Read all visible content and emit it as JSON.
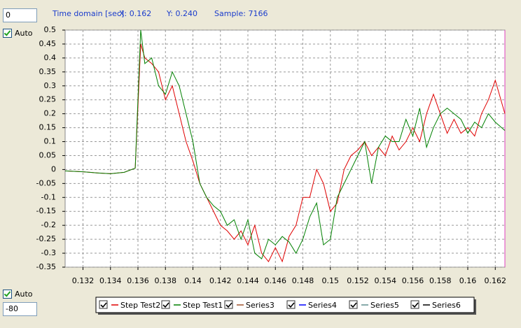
{
  "controls": {
    "top_input": "0",
    "top_auto": "Auto",
    "bottom_auto": "Auto",
    "bottom_input": "-80"
  },
  "chart_data": {
    "type": "line",
    "x_label": "Time domain [sec]",
    "readout": [
      "X: 0.162",
      "Y: 0.240",
      "Sample: 7166"
    ],
    "x": [
      0.1307,
      0.132,
      0.133,
      0.134,
      0.135,
      0.1358,
      0.1362,
      0.1365,
      0.137,
      0.1375,
      0.138,
      0.1385,
      0.139,
      0.1395,
      0.14,
      0.1405,
      0.141,
      0.1415,
      0.142,
      0.1425,
      0.143,
      0.1435,
      0.144,
      0.1445,
      0.145,
      0.1455,
      0.146,
      0.1465,
      0.147,
      0.1475,
      0.148,
      0.1485,
      0.149,
      0.1495,
      0.15,
      0.1505,
      0.151,
      0.1515,
      0.152,
      0.1525,
      0.153,
      0.1535,
      0.154,
      0.1545,
      0.155,
      0.1555,
      0.156,
      0.1565,
      0.157,
      0.1575,
      0.158,
      0.1585,
      0.159,
      0.1595,
      0.16,
      0.1605,
      0.161,
      0.1615,
      0.162,
      0.1627
    ],
    "series": [
      {
        "name": "Step Test2",
        "color": "#e00000",
        "values": [
          -0.005,
          -0.008,
          -0.012,
          -0.015,
          -0.01,
          0.005,
          0.45,
          0.4,
          0.38,
          0.35,
          0.25,
          0.3,
          0.2,
          0.1,
          0.03,
          -0.05,
          -0.1,
          -0.15,
          -0.2,
          -0.22,
          -0.25,
          -0.22,
          -0.27,
          -0.2,
          -0.3,
          -0.33,
          -0.28,
          -0.33,
          -0.24,
          -0.2,
          -0.1,
          -0.1,
          0,
          -0.05,
          -0.15,
          -0.12,
          0,
          0.05,
          0.07,
          0.1,
          0.05,
          0.08,
          0.05,
          0.12,
          0.07,
          0.1,
          0.15,
          0.1,
          0.2,
          0.27,
          0.2,
          0.13,
          0.18,
          0.13,
          0.15,
          0.12,
          0.2,
          0.25,
          0.32,
          0.2
        ]
      },
      {
        "name": "Step Test1",
        "color": "#008000",
        "values": [
          -0.005,
          -0.008,
          -0.012,
          -0.015,
          -0.01,
          0.005,
          0.5,
          0.38,
          0.4,
          0.3,
          0.27,
          0.35,
          0.3,
          0.2,
          0.1,
          -0.05,
          -0.1,
          -0.13,
          -0.15,
          -0.2,
          -0.18,
          -0.25,
          -0.18,
          -0.3,
          -0.32,
          -0.25,
          -0.27,
          -0.24,
          -0.26,
          -0.3,
          -0.25,
          -0.17,
          -0.12,
          -0.27,
          -0.25,
          -0.1,
          -0.05,
          0,
          0.05,
          0.1,
          -0.05,
          0.08,
          0.12,
          0.1,
          0.1,
          0.18,
          0.12,
          0.22,
          0.08,
          0.15,
          0.2,
          0.22,
          0.2,
          0.18,
          0.13,
          0.17,
          0.15,
          0.2,
          0.17,
          0.14
        ]
      }
    ],
    "legend_only_series": [
      {
        "name": "Series3",
        "color": "#a0522d"
      },
      {
        "name": "Series4",
        "color": "#0000ff"
      },
      {
        "name": "Series5",
        "color": "#5f8f8f"
      },
      {
        "name": "Series6",
        "color": "#000000"
      }
    ],
    "xlim": [
      0.1307,
      0.1627
    ],
    "ylim": [
      -0.35,
      0.5
    ],
    "xticks": [
      0.132,
      0.134,
      0.136,
      0.138,
      0.14,
      0.142,
      0.144,
      0.146,
      0.148,
      0.15,
      0.152,
      0.154,
      0.156,
      0.158,
      0.16,
      0.162
    ],
    "yticks": [
      0.5,
      0.45,
      0.4,
      0.35,
      0.3,
      0.25,
      0.2,
      0.15,
      0.1,
      0.05,
      0,
      -0.05,
      -0.1,
      -0.15,
      -0.2,
      -0.25,
      -0.3,
      -0.35
    ],
    "grid": true
  }
}
